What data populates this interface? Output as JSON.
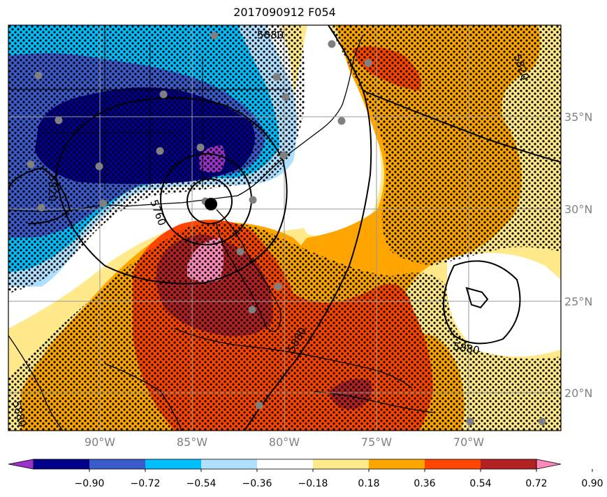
{
  "title": "2017090912 F054",
  "map": {
    "lat_labels": [
      "35°N",
      "30°N",
      "25°N",
      "20°N"
    ],
    "lon_labels": [
      "90°W",
      "85°W",
      "80°W",
      "75°W",
      "70°W"
    ],
    "contour_labels": [
      "5880",
      "5880",
      "5820",
      "5760",
      "5880",
      "5880",
      "5820"
    ],
    "stipple_meaning": "significant"
  },
  "colorbar": {
    "ticks": [
      "−0.90",
      "−0.72",
      "−0.54",
      "−0.36",
      "−0.18",
      "0.18",
      "0.36",
      "0.54",
      "0.72",
      "0.90"
    ],
    "colors": [
      "#9932cc",
      "#00008b",
      "#3b5bcc",
      "#00bfff",
      "#b0e0ff",
      "#ffffff",
      "#ffe98a",
      "#ffa500",
      "#ff4500",
      "#b22222",
      "#ff88b8"
    ]
  }
}
